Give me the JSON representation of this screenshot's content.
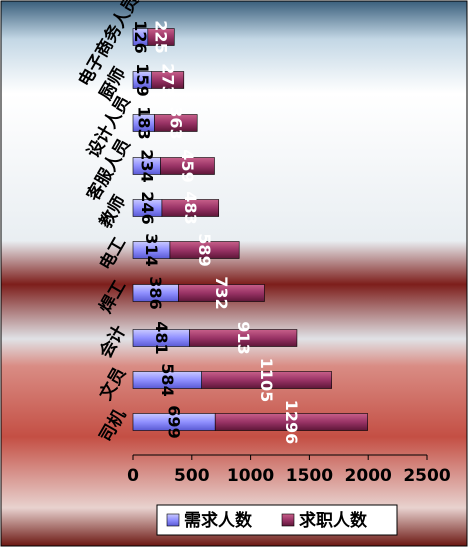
{
  "chart_data": {
    "type": "bar",
    "orientation": "horizontal",
    "stacked": true,
    "categories": [
      "司机",
      "文员",
      "会计",
      "焊工",
      "电工",
      "教师",
      "客服人员",
      "设计人员",
      "厨师",
      "电子商务人员"
    ],
    "series": [
      {
        "name": "需求人数",
        "values": [
          699,
          584,
          481,
          386,
          314,
          246,
          234,
          183,
          159,
          126
        ],
        "color": "#9999ff"
      },
      {
        "name": "求职人数",
        "values": [
          1296,
          1105,
          913,
          732,
          589,
          483,
          459,
          363,
          273,
          225
        ],
        "color": "#993366"
      }
    ],
    "xlim": [
      0,
      2500
    ],
    "xticks": [
      "0",
      "500",
      "1000",
      "1500",
      "2000",
      "2500"
    ],
    "legend_position": "bottom",
    "grid": false
  }
}
